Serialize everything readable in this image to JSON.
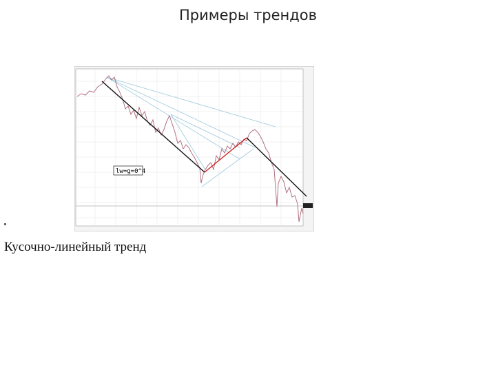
{
  "header": {
    "title": "Примеры трендов"
  },
  "figure": {
    "label": "lw=g=0^4"
  },
  "caption": "Кусочно-линейный тренд"
}
